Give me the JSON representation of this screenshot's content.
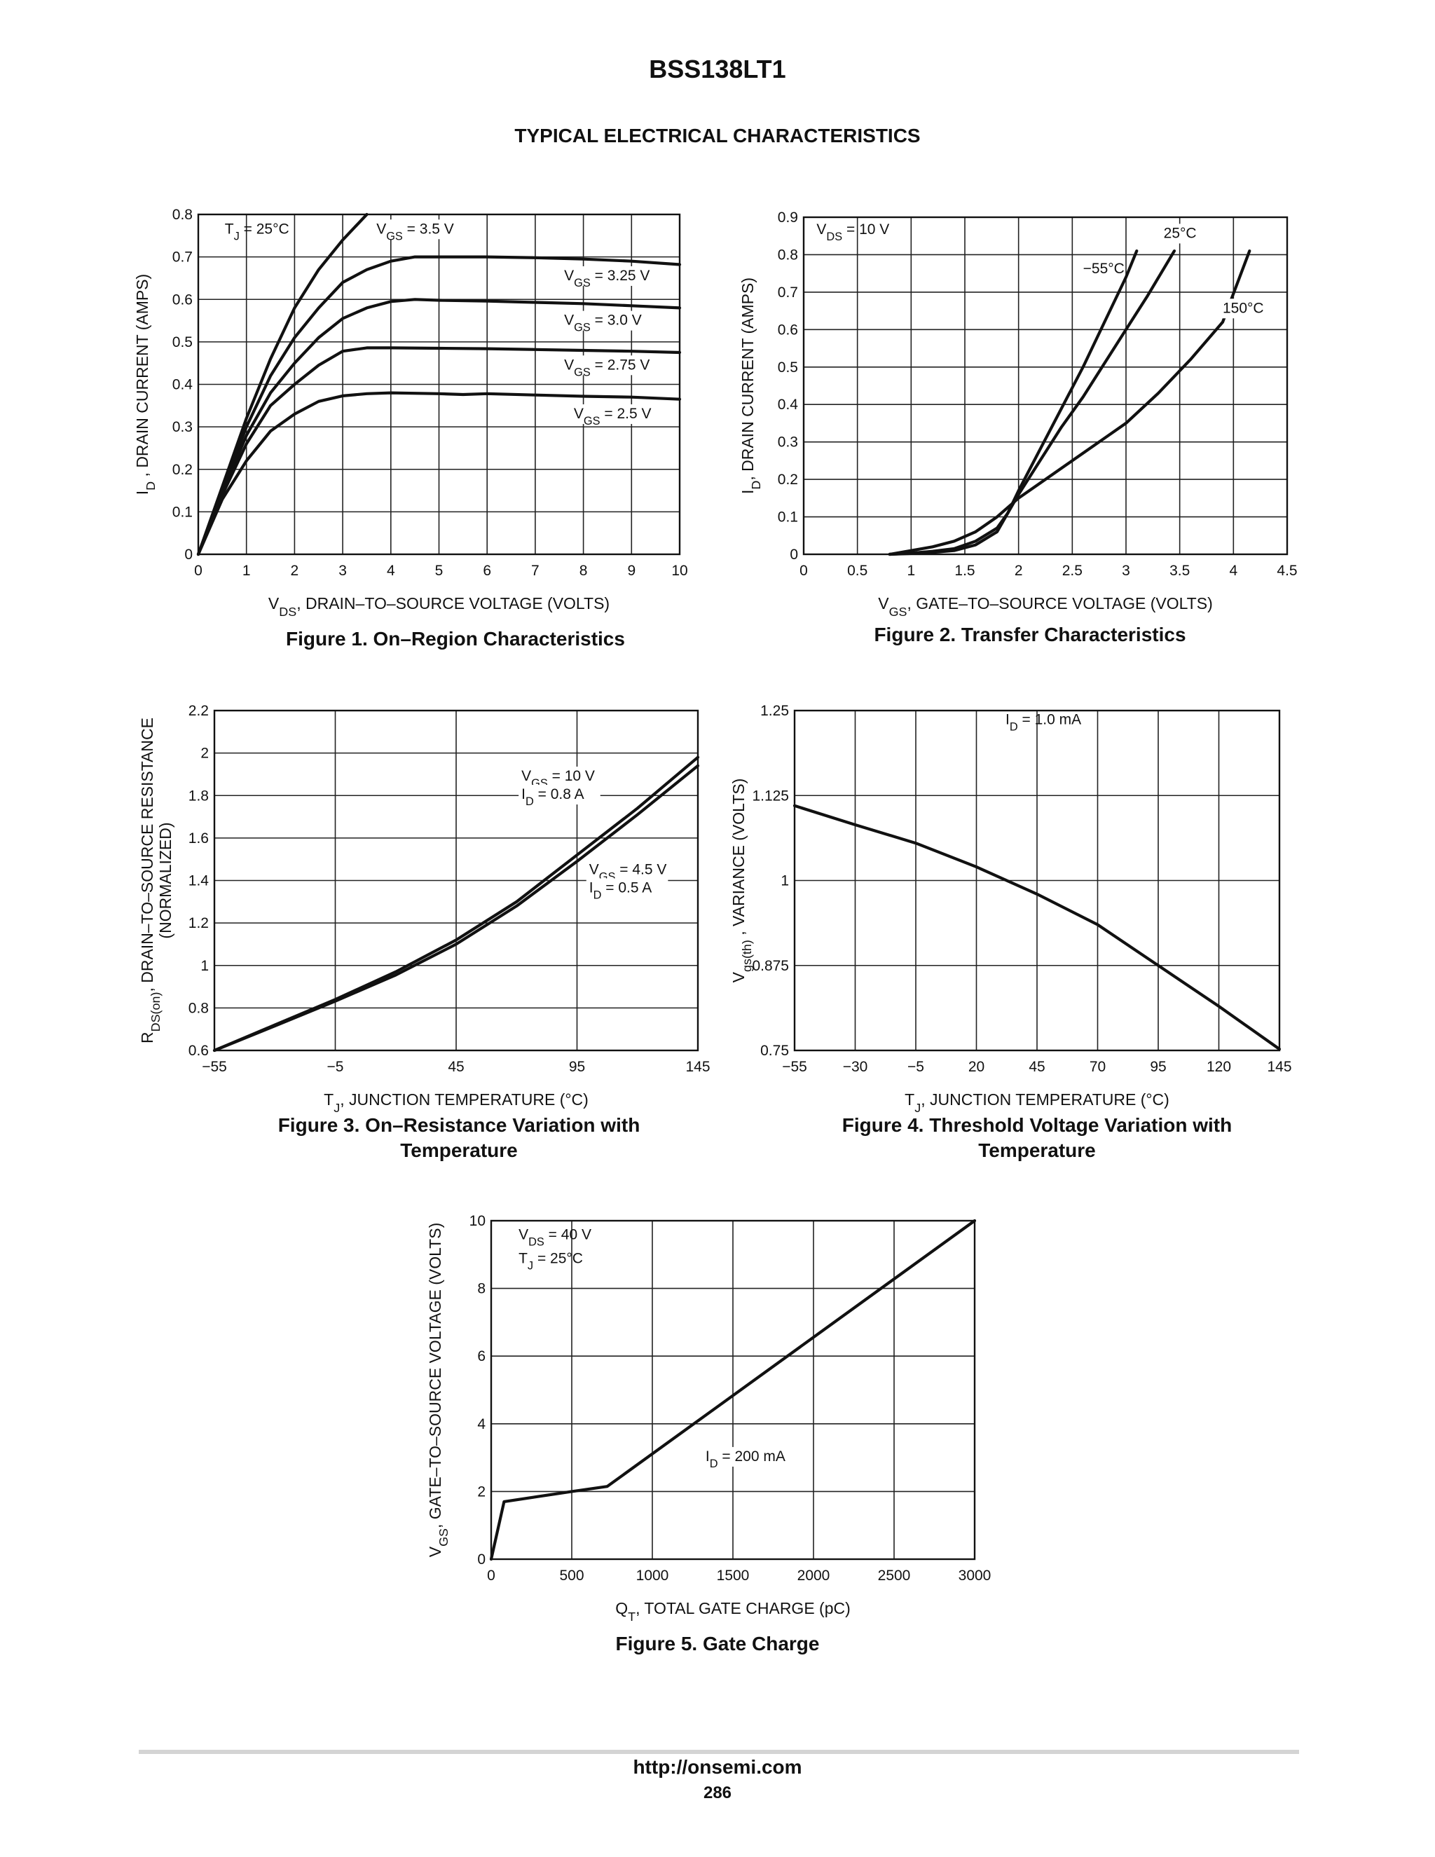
{
  "header": {
    "part_number": "BSS138LT1",
    "section_title": "TYPICAL ELECTRICAL CHARACTERISTICS"
  },
  "footer": {
    "url": "http://onsemi.com",
    "page": "286"
  },
  "chart_data": [
    {
      "id": "fig1",
      "type": "line",
      "caption": "Figure 1. On–Region Characteristics",
      "xlabel": "V_DS, DRAIN–TO–SOURCE VOLTAGE (VOLTS)",
      "ylabel": "I_D , DRAIN CURRENT (AMPS)",
      "xlim": [
        0,
        10
      ],
      "ylim": [
        0,
        0.8
      ],
      "xticks": [
        0,
        1,
        2,
        3,
        4,
        5,
        6,
        7,
        8,
        9,
        10
      ],
      "yticks": [
        0,
        0.1,
        0.2,
        0.3,
        0.4,
        0.5,
        0.6,
        0.7,
        0.8
      ],
      "grid": true,
      "annotations": [
        {
          "text": "T_J = 25°C",
          "x": 0.55,
          "y": 0.755
        }
      ],
      "series": [
        {
          "name": "V_GS = 3.5 V",
          "x": [
            0,
            0.5,
            1,
            1.5,
            2,
            2.5,
            3,
            3.5
          ],
          "y": [
            0,
            0.16,
            0.32,
            0.46,
            0.58,
            0.67,
            0.74,
            0.8
          ],
          "label_at": [
            3.7,
            0.755
          ]
        },
        {
          "name": "V_GS = 3.25 V",
          "x": [
            0,
            0.5,
            1,
            1.5,
            2,
            2.5,
            3,
            3.5,
            4,
            4.5,
            5,
            6,
            7,
            8,
            9,
            10
          ],
          "y": [
            0,
            0.15,
            0.3,
            0.42,
            0.51,
            0.58,
            0.64,
            0.67,
            0.69,
            0.7,
            0.7,
            0.7,
            0.698,
            0.695,
            0.69,
            0.682
          ],
          "label_at": [
            7.6,
            0.645
          ]
        },
        {
          "name": "V_GS = 3.0 V",
          "x": [
            0,
            0.5,
            1,
            1.5,
            2,
            2.5,
            3,
            3.5,
            4,
            4.5,
            5,
            6,
            7,
            8,
            9,
            10
          ],
          "y": [
            0,
            0.145,
            0.28,
            0.38,
            0.45,
            0.51,
            0.555,
            0.58,
            0.595,
            0.6,
            0.598,
            0.596,
            0.593,
            0.59,
            0.585,
            0.58
          ],
          "label_at": [
            7.6,
            0.54
          ]
        },
        {
          "name": "V_GS = 2.75 V",
          "x": [
            0,
            0.5,
            1,
            1.5,
            2,
            2.5,
            3,
            3.5,
            4,
            5,
            6,
            7,
            8,
            9,
            10
          ],
          "y": [
            0,
            0.14,
            0.26,
            0.35,
            0.4,
            0.445,
            0.478,
            0.486,
            0.486,
            0.485,
            0.484,
            0.482,
            0.48,
            0.478,
            0.475
          ],
          "label_at": [
            7.6,
            0.435
          ]
        },
        {
          "name": "V_GS = 2.5 V",
          "x": [
            0,
            0.5,
            1,
            1.5,
            2,
            2.5,
            3,
            3.5,
            4,
            5,
            5.5,
            6,
            7,
            8,
            9,
            10
          ],
          "y": [
            0,
            0.13,
            0.22,
            0.29,
            0.33,
            0.36,
            0.373,
            0.378,
            0.38,
            0.378,
            0.376,
            0.378,
            0.375,
            0.372,
            0.37,
            0.365
          ],
          "label_at": [
            7.8,
            0.32
          ]
        }
      ]
    },
    {
      "id": "fig2",
      "type": "line",
      "caption": "Figure 2. Transfer Characteristics",
      "xlabel": "V_GS, GATE–TO–SOURCE VOLTAGE (VOLTS)",
      "ylabel": "I_D, DRAIN CURRENT (AMPS)",
      "xlim": [
        0,
        4.5
      ],
      "ylim": [
        0,
        0.9
      ],
      "xticks": [
        0,
        0.5,
        1,
        1.5,
        2,
        2.5,
        3,
        3.5,
        4,
        4.5
      ],
      "yticks": [
        0,
        0.1,
        0.2,
        0.3,
        0.4,
        0.5,
        0.6,
        0.7,
        0.8,
        0.9
      ],
      "grid": true,
      "annotations": [
        {
          "text": "V_DS = 10 V",
          "x": 0.12,
          "y": 0.855
        }
      ],
      "series": [
        {
          "name": "−55°C",
          "x": [
            0.8,
            1,
            1.2,
            1.4,
            1.6,
            1.8,
            1.9,
            2,
            2.2,
            2.4,
            2.6,
            2.8,
            3,
            3.1
          ],
          "y": [
            0,
            0.002,
            0.005,
            0.01,
            0.025,
            0.06,
            0.11,
            0.17,
            0.28,
            0.39,
            0.5,
            0.62,
            0.74,
            0.81
          ],
          "label_at": [
            2.6,
            0.75
          ]
        },
        {
          "name": "25°C",
          "x": [
            0.8,
            1,
            1.2,
            1.4,
            1.6,
            1.8,
            1.9,
            2,
            2.2,
            2.4,
            2.6,
            2.8,
            3,
            3.2,
            3.45
          ],
          "y": [
            0,
            0.003,
            0.008,
            0.015,
            0.035,
            0.07,
            0.11,
            0.16,
            0.25,
            0.34,
            0.42,
            0.51,
            0.6,
            0.69,
            0.81
          ],
          "label_at": [
            3.35,
            0.845
          ]
        },
        {
          "name": "150°C",
          "x": [
            0.8,
            1,
            1.2,
            1.4,
            1.6,
            1.8,
            1.9,
            2,
            2.2,
            2.5,
            2.8,
            3,
            3.3,
            3.6,
            3.9,
            4.15
          ],
          "y": [
            0,
            0.01,
            0.02,
            0.035,
            0.06,
            0.1,
            0.125,
            0.15,
            0.19,
            0.25,
            0.31,
            0.35,
            0.43,
            0.52,
            0.62,
            0.81
          ],
          "label_at": [
            3.9,
            0.645
          ]
        }
      ]
    },
    {
      "id": "fig3",
      "type": "line",
      "caption": "Figure 3. On–Resistance Variation with Temperature",
      "xlabel": "T_J, JUNCTION TEMPERATURE (°C)",
      "ylabel": "R_DS(on), DRAIN–TO–SOURCE RESISTANCE (NORMALIZED)",
      "xlim": [
        -55,
        145
      ],
      "ylim": [
        0.6,
        2.2
      ],
      "xticks": [
        -55,
        -5,
        45,
        95,
        145
      ],
      "yticks": [
        0.6,
        0.8,
        1,
        1.2,
        1.4,
        1.6,
        1.8,
        2,
        2.2
      ],
      "grid": true,
      "series": [
        {
          "name": "V_GS = 10 V / I_D = 0.8 A",
          "x": [
            -55,
            -30,
            -5,
            20,
            45,
            70,
            95,
            120,
            145
          ],
          "y": [
            0.6,
            0.72,
            0.84,
            0.97,
            1.12,
            1.3,
            1.52,
            1.74,
            1.98
          ],
          "label_at": [
            72,
            1.87
          ]
        },
        {
          "name": "V_GS = 4.5 V / I_D = 0.5 A",
          "x": [
            -55,
            -30,
            -5,
            20,
            45,
            70,
            95,
            120,
            145
          ],
          "y": [
            0.6,
            0.715,
            0.832,
            0.955,
            1.1,
            1.28,
            1.49,
            1.71,
            1.94
          ],
          "label_at": [
            100,
            1.43
          ]
        }
      ]
    },
    {
      "id": "fig4",
      "type": "line",
      "caption": "Figure 4. Threshold Voltage Variation with Temperature",
      "xlabel": "T_J, JUNCTION TEMPERATURE (°C)",
      "ylabel": "V_gs(th) , VARIANCE (VOLTS)",
      "xlim": [
        -55,
        145
      ],
      "ylim": [
        0.75,
        1.25
      ],
      "xticks": [
        -55,
        -30,
        -5,
        20,
        45,
        70,
        95,
        120,
        145
      ],
      "yticks": [
        0.75,
        0.875,
        1,
        1.125,
        1.25
      ],
      "ytick_labels": [
        "0.75",
        "0.875",
        "1",
        "1.125",
        "1.25"
      ],
      "grid": true,
      "annotations": [
        {
          "text": "I_D = 1.0 mA",
          "x": 32,
          "y": 1.23
        }
      ],
      "series": [
        {
          "name": "I_D = 1.0 mA",
          "x": [
            -55,
            -30,
            -5,
            20,
            45,
            70,
            95,
            120,
            145
          ],
          "y": [
            1.11,
            1.082,
            1.055,
            1.02,
            0.98,
            0.935,
            0.875,
            0.815,
            0.752
          ]
        }
      ]
    },
    {
      "id": "fig5",
      "type": "line",
      "caption": "Figure 5. Gate Charge",
      "xlabel": "Q_T, TOTAL GATE CHARGE (pC)",
      "ylabel": "V_GS, GATE–TO–SOURCE VOLTAGE (VOLTS)",
      "xlim": [
        0,
        3000
      ],
      "ylim": [
        0,
        10
      ],
      "xticks": [
        0,
        500,
        1000,
        1500,
        2000,
        2500,
        3000
      ],
      "yticks": [
        0,
        2,
        4,
        6,
        8,
        10
      ],
      "grid": true,
      "annotations": [
        {
          "text": "V_DS = 40 V",
          "x": 170,
          "y": 9.45
        },
        {
          "text": "T_J = 25°C",
          "x": 170,
          "y": 8.75
        }
      ],
      "series": [
        {
          "name": "I_D = 200 mA",
          "x": [
            0,
            80,
            500,
            720,
            3000
          ],
          "y": [
            0,
            1.7,
            2.0,
            2.15,
            10
          ],
          "label_at": [
            1330,
            2.9
          ]
        }
      ]
    }
  ]
}
